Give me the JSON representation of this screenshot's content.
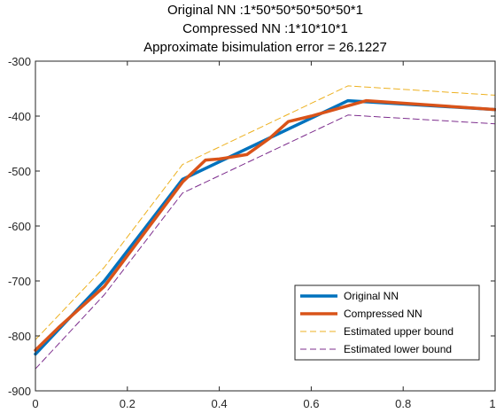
{
  "chart_data": {
    "type": "line",
    "title_lines": [
      "Original NN :1*50*50*50*50*50*1",
      "Compressed NN :1*10*10*1",
      "Approximate bisimulation error = 26.1227"
    ],
    "xlabel": "",
    "ylabel": "",
    "xlim": [
      0,
      1
    ],
    "ylim": [
      -900,
      -300
    ],
    "xticks": [
      0,
      0.2,
      0.4,
      0.6,
      0.8,
      1
    ],
    "yticks": [
      -900,
      -800,
      -700,
      -600,
      -500,
      -400,
      -300
    ],
    "grid": false,
    "legend_position": "bottom-right",
    "series": [
      {
        "name": "Original NN",
        "color": "#0072BD",
        "style": "solid-thick",
        "x": [
          0,
          0.15,
          0.32,
          0.68,
          1
        ],
        "y": [
          -833,
          -700,
          -515,
          -372,
          -388
        ]
      },
      {
        "name": "Compressed NN",
        "color": "#D95319",
        "style": "solid-thick",
        "x": [
          0,
          0.05,
          0.15,
          0.32,
          0.37,
          0.4,
          0.46,
          0.51,
          0.55,
          0.6,
          0.72,
          1
        ],
        "y": [
          -826,
          -785,
          -710,
          -520,
          -480,
          -478,
          -470,
          -440,
          -410,
          -400,
          -372,
          -388
        ]
      },
      {
        "name": "Estimated upper bound",
        "color": "#EDB120",
        "style": "dashed",
        "x": [
          0,
          0.15,
          0.32,
          0.68,
          1
        ],
        "y": [
          -807,
          -675,
          -488,
          -345,
          -362
        ]
      },
      {
        "name": "Estimated lower bound",
        "color": "#7E2F8E",
        "style": "dashed",
        "x": [
          0,
          0.15,
          0.32,
          0.68,
          1
        ],
        "y": [
          -860,
          -725,
          -540,
          -398,
          -414
        ]
      }
    ]
  }
}
